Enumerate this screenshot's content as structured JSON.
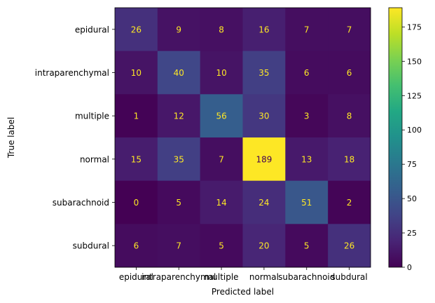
{
  "chart_data": {
    "type": "heatmap",
    "title": "",
    "xlabel": "Predicted label",
    "ylabel": "True label",
    "x_categories": [
      "epidural",
      "intraparenchymal",
      "multiple",
      "normal",
      "subarachnoid",
      "subdural"
    ],
    "y_categories": [
      "epidural",
      "intraparenchymal",
      "multiple",
      "normal",
      "subarachnoid",
      "subdural"
    ],
    "matrix": [
      [
        26,
        9,
        8,
        16,
        7,
        7
      ],
      [
        10,
        40,
        10,
        35,
        6,
        6
      ],
      [
        1,
        12,
        56,
        30,
        3,
        8
      ],
      [
        15,
        35,
        7,
        189,
        13,
        18
      ],
      [
        0,
        5,
        14,
        24,
        51,
        2
      ],
      [
        6,
        7,
        5,
        20,
        5,
        26
      ]
    ],
    "colormap": "viridis",
    "vmin": 0,
    "vmax": 189,
    "colorbar_ticks": [
      0,
      25,
      50,
      75,
      100,
      125,
      150,
      175
    ],
    "cell_text_color_dark_bg": "#fde725",
    "cell_text_color_light_bg": "#440154"
  }
}
